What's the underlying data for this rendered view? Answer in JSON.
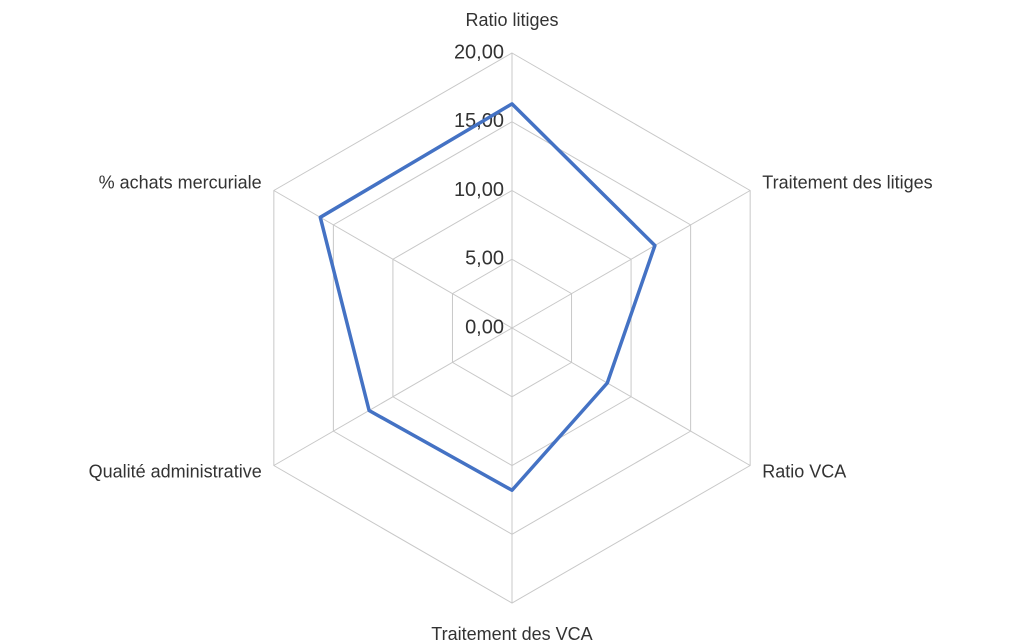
{
  "chart_data": {
    "type": "radar",
    "categories": [
      "Ratio litiges",
      "Traitement des litiges",
      "Ratio VCA",
      "Traitement des VCA",
      "Qualité administrative",
      "%  achats mercuriale"
    ],
    "values": [
      16.3,
      12.0,
      8.0,
      11.8,
      12.0,
      16.1
    ],
    "color": "#4472c4",
    "ylim": [
      0,
      20
    ],
    "yticks": [
      {
        "value": 0,
        "label": "0,00"
      },
      {
        "value": 5,
        "label": "5,00"
      },
      {
        "value": 10,
        "label": "10,00"
      },
      {
        "value": 15,
        "label": "15,00"
      },
      {
        "value": 20,
        "label": "20,00"
      }
    ],
    "grid": true
  }
}
